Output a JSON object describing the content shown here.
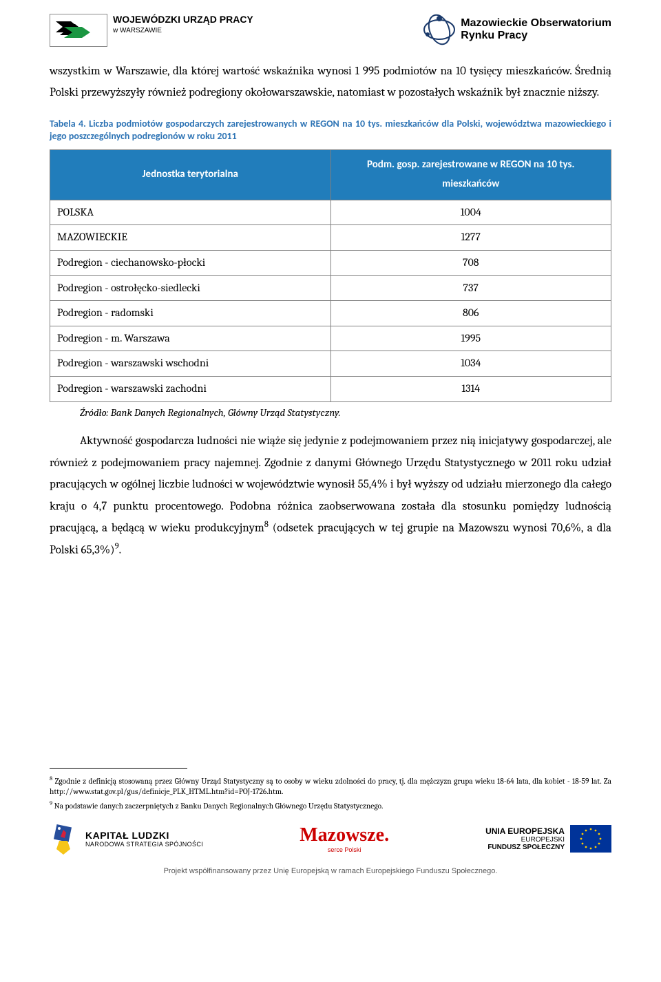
{
  "header": {
    "left_line1": "WOJEWÓDZKI URZĄD PRACY",
    "left_line2": "w WARSZAWIE",
    "right_line1": "Mazowieckie Obserwatorium",
    "right_line2": "Rynku Pracy"
  },
  "paragraphs": {
    "p1": "wszystkim w Warszawie, dla której wartość wskaźnika wynosi 1 995 podmiotów na 10 tysięcy mieszkańców. Średnią Polski przewyższyły również podregiony okołowarszawskie, natomiast w pozostałych wskaźnik był znacznie niższy.",
    "p2_part1": "Aktywność gospodarcza ludności nie wiąże się jedynie z podejmowaniem przez nią inicjatywy gospodarczej, ale również z podejmowaniem pracy najemnej. Zgodnie z danymi Głównego Urzędu Statystycznego w 2011 roku udział pracujących w ogólnej liczbie ludności w województwie wynosił 55,4% i był wyższy od udziału mierzonego dla całego kraju o 4,7 punktu procentowego. Podobna różnica zaobserwowana została dla stosunku pomiędzy ludnością pracującą, a będącą w wieku produkcyjnym",
    "p2_part2": " (odsetek pracujących w tej grupie na Mazowszu wynosi 70,6%, a dla Polski 65,3%)",
    "p2_part3": "."
  },
  "table_caption": "Tabela 4. Liczba podmiotów gospodarczych zarejestrowanych w REGON na 10 tys. mieszkańców dla Polski, województwa mazowieckiego i jego poszczególnych podregionów w roku 2011",
  "table": {
    "col1_header": "Jednostka terytorialna",
    "col2_header": "Podm. gosp. zarejestrowane w REGON na 10 tys. mieszkańców",
    "rows": [
      {
        "label": "POLSKA",
        "value": "1004"
      },
      {
        "label": "MAZOWIECKIE",
        "value": "1277"
      },
      {
        "label": "Podregion - ciechanowsko-płocki",
        "value": "708"
      },
      {
        "label": "Podregion - ostrołęcko-siedlecki",
        "value": "737"
      },
      {
        "label": "Podregion - radomski",
        "value": "806"
      },
      {
        "label": "Podregion - m. Warszawa",
        "value": "1995"
      },
      {
        "label": "Podregion - warszawski wschodni",
        "value": "1034"
      },
      {
        "label": "Podregion - warszawski zachodni",
        "value": "1314"
      }
    ],
    "header_bg": "#217dbb",
    "header_fg": "#ffffff",
    "border_color": "#7f7f7f"
  },
  "table_source": "Źródło: Bank Danych Regionalnych, Główny Urząd Statystyczny.",
  "footnotes": {
    "fn8_marker": "8",
    "fn8_text": " Zgodnie z definicją stosowaną przez Główny Urząd Statystyczny  są to osoby w wieku zdolności do pracy, tj. dla mężczyzn grupa wieku 18-64 lata, dla kobiet - 18-59 lat. Za http://www.stat.gov.pl/gus/definicje_PLK_HTML.htm?id=POJ-1726.htm.",
    "fn9_marker": "9",
    "fn9_text": " Na podstawie danych zaczerpniętych z Banku Danych Regionalnych Głównego Urzędu Statystycznego."
  },
  "footer": {
    "kapital_l1": "KAPITAŁ LUDZKI",
    "kapital_l2": "NARODOWA STRATEGIA SPÓJNOŚCI",
    "mazowsze": "Mazowsze.",
    "mazowsze_sub": "serce Polski",
    "eu_l1": "UNIA EUROPEJSKA",
    "eu_l2": "EUROPEJSKI",
    "eu_l3": "FUNDUSZ SPOŁECZNY",
    "project_note": "Projekt współfinansowany  przez Unię Europejską w ramach Europejskiego Funduszu Społecznego."
  },
  "colors": {
    "caption_blue": "#2e74b5",
    "table_header_bg": "#217dbb",
    "mazowsze_red": "#c00000",
    "eu_blue": "#003399",
    "eu_star": "#ffcc00"
  }
}
